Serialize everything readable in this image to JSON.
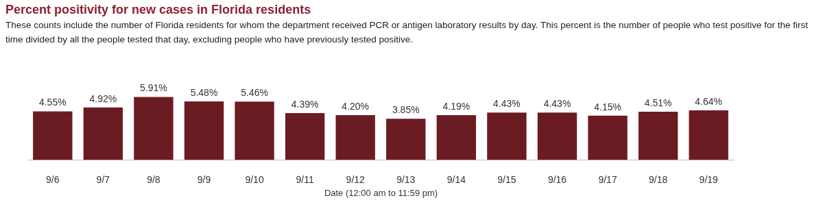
{
  "chart_data": {
    "type": "bar",
    "title": "Percent positivity for new cases in Florida residents",
    "subtitle": "These counts include the number of Florida residents for whom the department received PCR or antigen laboratory results by day. This percent is the number of people who test positive for the first time divided by all the people tested that day, excluding people who have previously tested positive.",
    "xlabel": "Date (12:00 am to 11:59 pm)",
    "categories": [
      "9/6",
      "9/7",
      "9/8",
      "9/9",
      "9/10",
      "9/11",
      "9/12",
      "9/13",
      "9/14",
      "9/15",
      "9/16",
      "9/17",
      "9/18",
      "9/19"
    ],
    "values": [
      4.55,
      4.92,
      5.91,
      5.48,
      5.46,
      4.39,
      4.2,
      3.85,
      4.19,
      4.43,
      4.43,
      4.15,
      4.51,
      4.64
    ],
    "value_labels": [
      "4.55%",
      "4.92%",
      "5.91%",
      "5.48%",
      "5.46%",
      "4.39%",
      "4.20%",
      "3.85%",
      "4.19%",
      "4.43%",
      "4.43%",
      "4.15%",
      "4.51%",
      "4.64%"
    ],
    "color": "#6b1c22"
  }
}
